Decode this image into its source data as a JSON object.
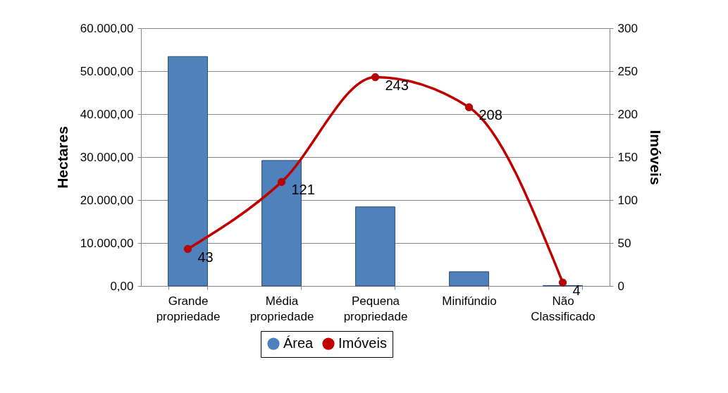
{
  "chart_data": {
    "type": "bar",
    "ylabel": "Hectares",
    "y2label": "Imóveis",
    "categories": [
      "Grande propriedade",
      "Média propriedade",
      "Pequena propriedade",
      "Minifúndio",
      "Não Classificado"
    ],
    "series": [
      {
        "name": "Área",
        "color": "#4f81bd",
        "values": [
          53400,
          29200,
          18400,
          3300,
          100
        ]
      },
      {
        "name": "Imóveis",
        "type": "line",
        "axis": "y2",
        "color": "#c00000",
        "values": [
          43,
          121,
          243,
          208,
          4
        ],
        "value_labels": [
          "43",
          "121",
          "243",
          "208",
          "4"
        ]
      }
    ],
    "ylim": [
      0,
      60000
    ],
    "yticks": [
      {
        "value": 0,
        "label": "0,00"
      },
      {
        "value": 10000,
        "label": "10.000,00"
      },
      {
        "value": 20000,
        "label": "20.000,00"
      },
      {
        "value": 30000,
        "label": "30.000,00"
      },
      {
        "value": 40000,
        "label": "40.000,00"
      },
      {
        "value": 50000,
        "label": "50.000,00"
      },
      {
        "value": 60000,
        "label": "60.000,00"
      }
    ],
    "y2lim": [
      0,
      300
    ],
    "y2ticks": [
      0,
      50,
      100,
      150,
      200,
      250,
      300
    ],
    "grid": "y",
    "legend": "bottom",
    "marker": "circle"
  }
}
